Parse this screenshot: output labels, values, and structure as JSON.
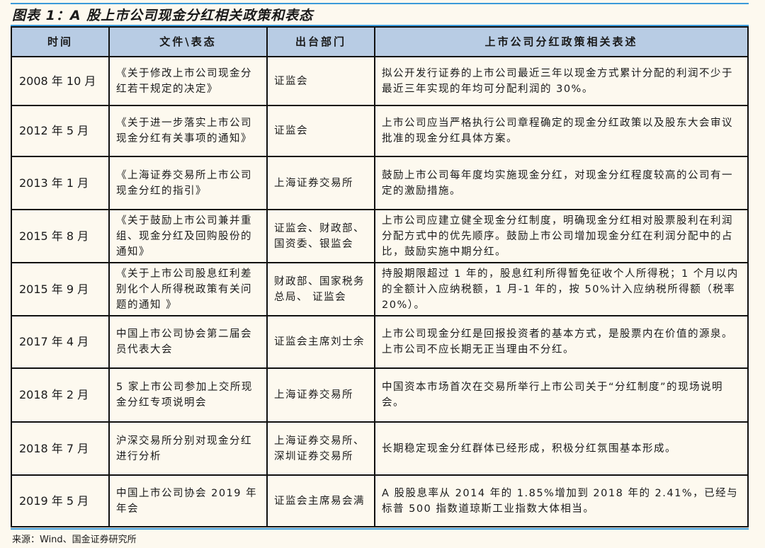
{
  "title": "图表 1：A 股上市公司现金分红相关政策和表态",
  "table": {
    "headers": [
      "时间",
      "文件\\表态",
      "出台部门",
      "上市公司分红政策相关表述"
    ],
    "rows": [
      {
        "date": "2008 年 10 月",
        "doc": "《关于修改上市公司现金分红若干规定的决定》",
        "dept": "证监会",
        "desc": "拟公开发行证券的上市公司最近三年以现金方式累计分配的利润不少于最近三年实现的年均可分配利润的 30%。"
      },
      {
        "date": "2012 年 5 月",
        "doc": "《关于进一步落实上市公司现金分红有关事项的通知》",
        "dept": "证监会",
        "desc": "上市公司应当严格执行公司章程确定的现金分红政策以及股东大会审议批准的现金分红具体方案。"
      },
      {
        "date": "2013 年 1 月",
        "doc": "《上海证券交易所上市公司现金分红的指引》",
        "dept": "上海证券交易所",
        "desc": "鼓励上市公司每年度均实施现金分红，对现金分红程度较高的公司有一定的激励措施。"
      },
      {
        "date": "2015 年 8 月",
        "doc": "《关于鼓励上市公司兼并重组、现金分红及回购股份的通知》",
        "dept": "证监会、财政部、国资委、银监会",
        "desc": "上市公司应建立健全现金分红制度，明确现金分红相对股票股利在利润分配方式中的优先顺序。鼓励上市公司增加现金分红在利润分配中的占比，鼓励实施中期分红。"
      },
      {
        "date": "2015 年 9 月",
        "doc": "《关于上市公司股息红利差别化个人所得税政策有关问题的通知 》",
        "dept": "财政部、国家税务总局、 证监会",
        "desc": "持股期限超过 1 年的，股息红利所得暂免征收个人所得税；1 个月以内的全额计入应纳税额，1 月-1 年的，按 50%计入应纳税所得额（税率 20%）。"
      },
      {
        "date": "2017 年 4 月",
        "doc": "中国上市公司协会第二届会员代表大会",
        "dept": "证监会主席刘士余",
        "desc": "上市公司现金分红是回报投资者的基本方式，是股票内在价值的源泉。上市公司不应长期无正当理由不分红。"
      },
      {
        "date": "2018 年 2 月",
        "doc": "5 家上市公司参加上交所现金分红专项说明会",
        "dept": "上海证券交易所",
        "desc": "中国资本市场首次在交易所举行上市公司关于“分红制度”的现场说明会。"
      },
      {
        "date": "2018 年 7 月",
        "doc": "沪深交易所分别对现金分红进行分析",
        "dept": "上海证券交易所、深圳证券交易所",
        "desc": "长期稳定现金分红群体已经形成，积极分红氛围基本形成。"
      },
      {
        "date": "2019 年 5 月",
        "doc": "中国上市公司协会 2019 年年会",
        "dept": "证监会主席易会满",
        "desc": "A 股股息率从 2014 年的 1.85%增加到 2018 年的 2.41%，已经与标普 500 指数道琼斯工业指数大体相当。"
      }
    ]
  },
  "source": "来源：Wind、国金证券研究所",
  "colors": {
    "header_bg": "#b8cce4",
    "rule": "#3a9ad9",
    "page_bg": "#fdf9ef"
  }
}
